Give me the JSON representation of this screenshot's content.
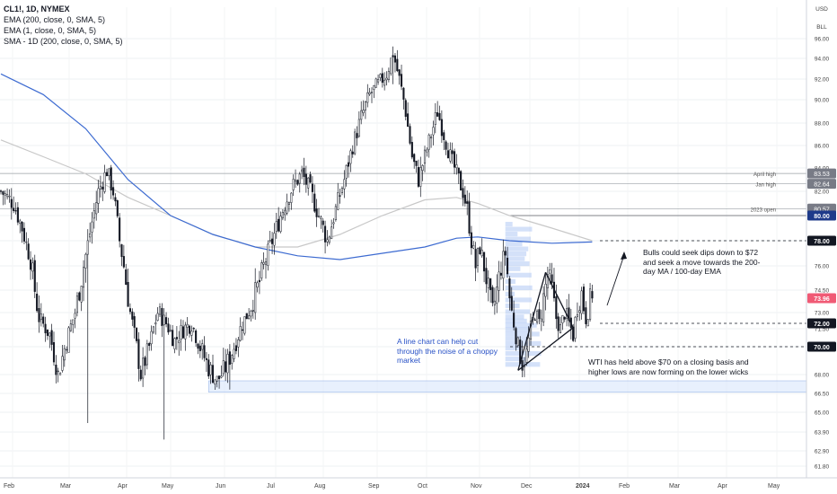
{
  "header": {
    "symbol": "CL1!, 1D, NYMEX",
    "indicators": [
      "EMA (200, close, 0, SMA, 5)",
      "EMA (1, close, 0, SMA, 5)",
      "SMA - 1D (200, close, 0, SMA, 5)"
    ]
  },
  "axis_labels": {
    "currency": "USD",
    "unit": "BLL"
  },
  "colors": {
    "candle": "#131722",
    "ema200": "#3d6bd1",
    "sma_daily": "#c8c8c8",
    "note_blue": "#2851c6",
    "zone": "#d6e4fb",
    "price_badge": "#f05a75",
    "level_badge": "#131722",
    "ema_badge": "#1e3a8a"
  },
  "chart_data": {
    "type": "candlestick",
    "yticks": [
      96.0,
      94.0,
      92.0,
      90.0,
      88.0,
      86.0,
      84.0,
      82.0,
      80.0,
      78.0,
      76.0,
      74.5,
      73.0,
      71.5,
      70.0,
      68.0,
      66.5,
      65.0,
      63.9,
      62.9,
      61.8
    ],
    "xticks": [
      "Feb",
      "Mar",
      "Apr",
      "May",
      "Jun",
      "Jul",
      "Aug",
      "Sep",
      "Oct",
      "Nov",
      "Dec",
      "2024",
      "Feb",
      "Mar",
      "Apr",
      "May"
    ],
    "ylim": [
      61.0,
      97.0
    ],
    "current_price": 73.96,
    "swing_path": [
      [
        0,
        82.0
      ],
      [
        6,
        81.0
      ],
      [
        10,
        79.0
      ],
      [
        14,
        76.5
      ],
      [
        18,
        72.5
      ],
      [
        23,
        71.0
      ],
      [
        27,
        68.0
      ],
      [
        31,
        70.5
      ],
      [
        35,
        73.0
      ],
      [
        39,
        76.0
      ],
      [
        43,
        79.5
      ],
      [
        46,
        82.0
      ],
      [
        50,
        83.8
      ],
      [
        53,
        82.0
      ],
      [
        56,
        78.0
      ],
      [
        60,
        74.0
      ],
      [
        63,
        71.0
      ],
      [
        66,
        68.0
      ],
      [
        70,
        70.0
      ],
      [
        74,
        73.0
      ],
      [
        78,
        72.0
      ],
      [
        82,
        70.5
      ],
      [
        86,
        71.5
      ],
      [
        90,
        72.0
      ],
      [
        94,
        70.0
      ],
      [
        98,
        68.5
      ],
      [
        102,
        67.5
      ],
      [
        106,
        68.5
      ],
      [
        110,
        70.0
      ],
      [
        114,
        72.0
      ],
      [
        118,
        73.5
      ],
      [
        122,
        75.0
      ],
      [
        126,
        77.0
      ],
      [
        130,
        79.0
      ],
      [
        134,
        81.0
      ],
      [
        138,
        82.5
      ],
      [
        142,
        83.5
      ],
      [
        146,
        82.0
      ],
      [
        150,
        80.0
      ],
      [
        154,
        78.0
      ],
      [
        158,
        80.5
      ],
      [
        162,
        83.0
      ],
      [
        166,
        86.0
      ],
      [
        170,
        88.5
      ],
      [
        174,
        90.5
      ],
      [
        178,
        91.5
      ],
      [
        182,
        92.5
      ],
      [
        185,
        94.5
      ],
      [
        188,
        92.0
      ],
      [
        191,
        89.0
      ],
      [
        194,
        85.0
      ],
      [
        197,
        83.0
      ],
      [
        200,
        85.0
      ],
      [
        203,
        87.0
      ],
      [
        206,
        89.0
      ],
      [
        209,
        87.0
      ],
      [
        212,
        85.0
      ],
      [
        215,
        83.5
      ],
      [
        218,
        82.0
      ],
      [
        220,
        80.5
      ],
      [
        222,
        78.0
      ],
      [
        224,
        76.0
      ],
      [
        226,
        77.5
      ],
      [
        228,
        76.0
      ],
      [
        230,
        74.5
      ],
      [
        232,
        73.0
      ],
      [
        234,
        74.5
      ],
      [
        236,
        76.0
      ],
      [
        238,
        77.0
      ],
      [
        240,
        74.0
      ],
      [
        242,
        72.0
      ],
      [
        244,
        70.0
      ],
      [
        246,
        68.8
      ],
      [
        248,
        69.5
      ],
      [
        250,
        71.5
      ],
      [
        252,
        73.0
      ],
      [
        254,
        72.0
      ],
      [
        256,
        74.0
      ],
      [
        258,
        75.5
      ],
      [
        260,
        74.5
      ],
      [
        262,
        72.5
      ],
      [
        264,
        71.5
      ],
      [
        266,
        73.0
      ],
      [
        268,
        72.0
      ],
      [
        270,
        71.0
      ],
      [
        272,
        73.5
      ],
      [
        274,
        74.3
      ],
      [
        276,
        72.5
      ],
      [
        278,
        73.8
      ],
      [
        279,
        73.96
      ]
    ],
    "extremes": [
      {
        "i": 41,
        "h": 65.0,
        "l": 64.4
      },
      {
        "i": 77,
        "h": 70.5,
        "l": 63.5
      },
      {
        "i": 108,
        "h": 69.5,
        "l": 66.8
      },
      {
        "i": 185,
        "h": 95.2,
        "l": 91.5
      },
      {
        "i": 246,
        "h": 70.5,
        "l": 68.0
      }
    ],
    "ema200": [
      [
        0,
        92.5
      ],
      [
        20,
        90.5
      ],
      [
        40,
        87.5
      ],
      [
        60,
        83.0
      ],
      [
        80,
        80.0
      ],
      [
        100,
        78.5
      ],
      [
        120,
        77.5
      ],
      [
        140,
        76.8
      ],
      [
        160,
        76.5
      ],
      [
        180,
        77.0
      ],
      [
        200,
        77.5
      ],
      [
        215,
        78.2
      ],
      [
        225,
        78.3
      ],
      [
        240,
        78.0
      ],
      [
        260,
        77.8
      ],
      [
        279,
        77.9
      ]
    ],
    "sma_daily": [
      [
        0,
        86.5
      ],
      [
        20,
        85.0
      ],
      [
        40,
        83.5
      ],
      [
        60,
        81.5
      ],
      [
        80,
        80.0
      ],
      [
        100,
        78.5
      ],
      [
        120,
        77.5
      ],
      [
        140,
        77.5
      ],
      [
        160,
        78.5
      ],
      [
        180,
        80.0
      ],
      [
        200,
        81.3
      ],
      [
        215,
        81.5
      ],
      [
        225,
        81.0
      ],
      [
        240,
        80.0
      ],
      [
        260,
        79.0
      ],
      [
        279,
        78.0
      ]
    ],
    "hlines": [
      {
        "label": "2023 open",
        "price": 80.57
      },
      {
        "label": "Jan high",
        "price": 82.64
      },
      {
        "label": "April high",
        "price": 83.53
      }
    ],
    "levels": [
      78.0,
      72.0,
      70.0
    ],
    "ema_badge": 80.0,
    "trendlines": [
      [
        [
          244,
          68.3
        ],
        [
          270,
          71.6
        ]
      ],
      [
        [
          244,
          68.3
        ],
        [
          257,
          75.6
        ]
      ],
      [
        [
          257,
          75.6
        ],
        [
          270,
          71.6
        ]
      ]
    ],
    "zone": {
      "i0": 98,
      "i1": 380,
      "low": 66.6,
      "high": 67.5
    },
    "volume_profile": {
      "i": 238,
      "top": 79.5,
      "bottom": 68.5
    }
  },
  "notes": {
    "bulls": "Bulls could seek dips down to $72 and seek a move towards the 200-day MA / 100-day EMA",
    "line_chart": "A line chart can help cut through the noise of a choppy market",
    "wti": "WTI has held above $70 on a closing basis and higher lows are now forming on the lower wicks"
  }
}
